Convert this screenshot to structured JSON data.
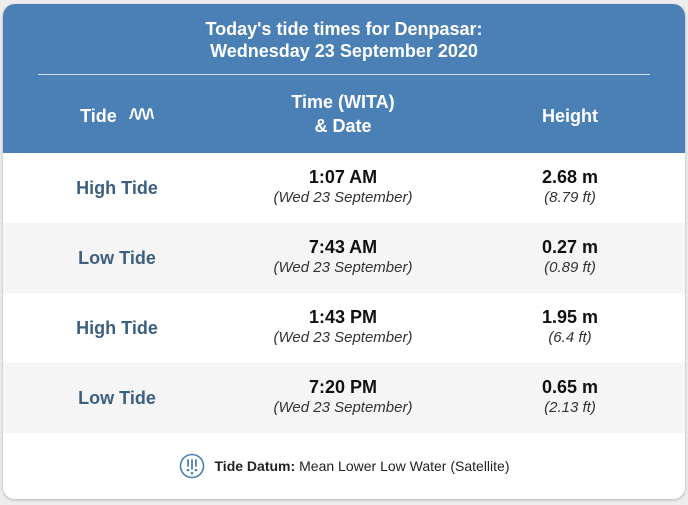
{
  "header": {
    "title_line1": "Today's tide times for Denpasar:",
    "title_line2": "Wednesday 23 September 2020",
    "col_tide": "Tide",
    "col_time_line1": "Time (WITA)",
    "col_time_line2": "& Date",
    "col_height": "Height"
  },
  "rows": [
    {
      "type": "High Tide",
      "time": "1:07 AM",
      "date": "(Wed 23 September)",
      "height_m": "2.68 m",
      "height_ft": "(8.79 ft)"
    },
    {
      "type": "Low Tide",
      "time": "7:43 AM",
      "date": "(Wed 23 September)",
      "height_m": "0.27 m",
      "height_ft": "(0.89 ft)"
    },
    {
      "type": "High Tide",
      "time": "1:43 PM",
      "date": "(Wed 23 September)",
      "height_m": "1.95 m",
      "height_ft": "(6.4 ft)"
    },
    {
      "type": "Low Tide",
      "time": "7:20 PM",
      "date": "(Wed 23 September)",
      "height_m": "0.65 m",
      "height_ft": "(2.13 ft)"
    }
  ],
  "footer": {
    "label": "Tide Datum:",
    "value": "Mean Lower Low Water (Satellite)",
    "icon": "tide-datum-icon"
  },
  "colors": {
    "header_bg": "#4a80b5",
    "tide_label": "#3d5f80",
    "alt_row": "#f5f5f5"
  }
}
